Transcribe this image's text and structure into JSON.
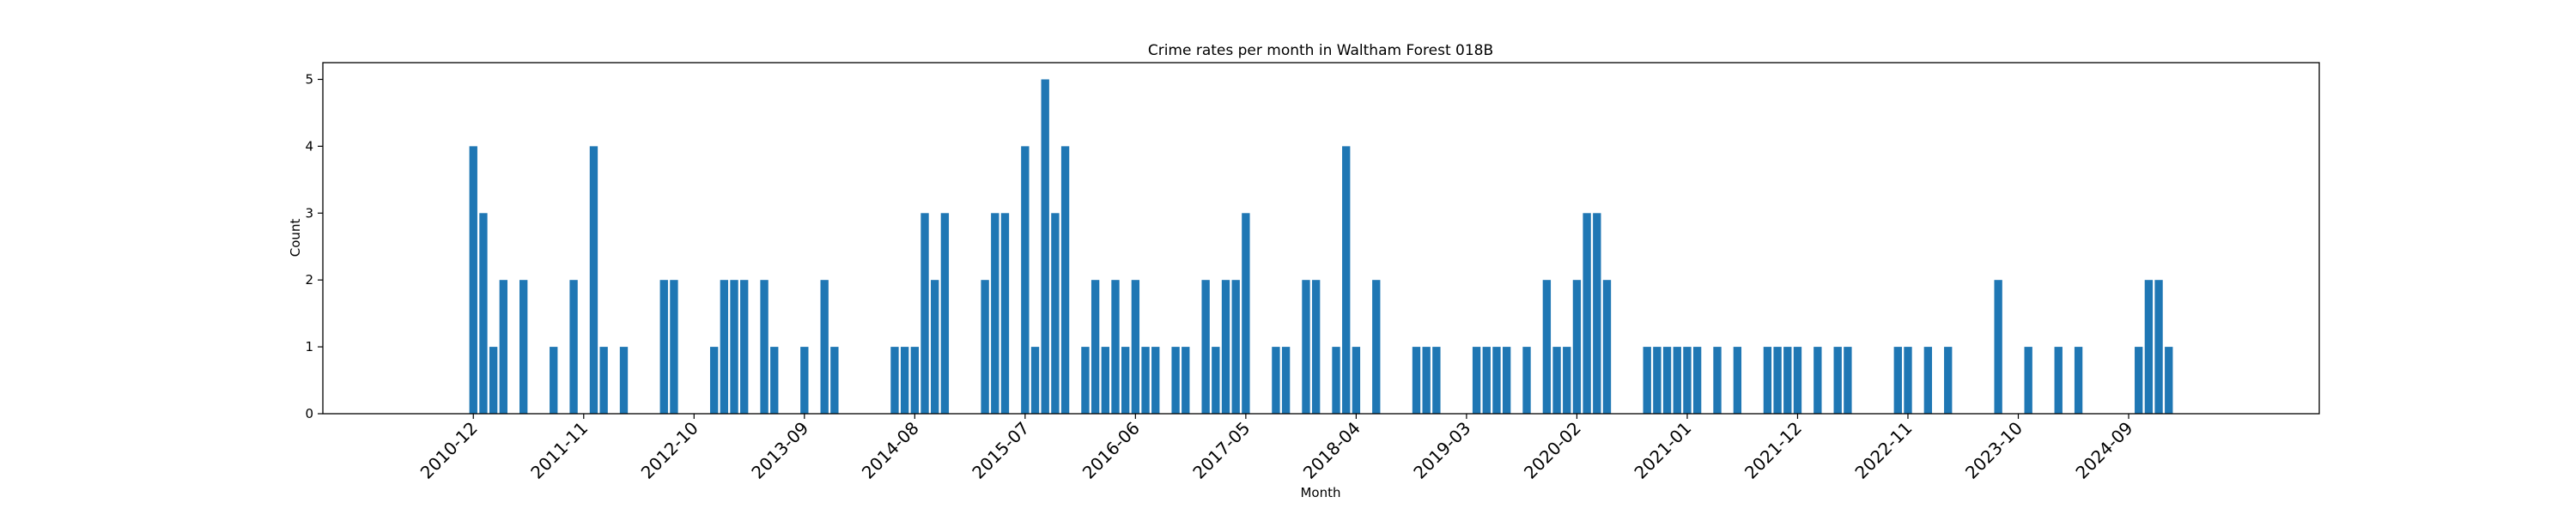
{
  "chart_data": {
    "type": "bar",
    "title": "Crime rates per month in Waltham Forest 018B",
    "xlabel": "Month",
    "ylabel": "Count",
    "ylim": [
      0,
      5.25
    ],
    "yticks": [
      0,
      1,
      2,
      3,
      4,
      5
    ],
    "xlim": [
      "2009-09",
      "2026-04"
    ],
    "xticks": [
      "2010-12",
      "2011-11",
      "2012-10",
      "2013-09",
      "2014-08",
      "2015-07",
      "2016-06",
      "2017-05",
      "2018-04",
      "2019-03",
      "2020-02",
      "2021-01",
      "2021-12",
      "2022-11",
      "2023-10",
      "2024-09"
    ],
    "bar_color": "#1f77b4",
    "grid": false,
    "legend": "none",
    "categories": [
      "2010-12",
      "2011-01",
      "2011-02",
      "2011-03",
      "2011-05",
      "2011-08",
      "2011-10",
      "2011-12",
      "2012-01",
      "2012-03",
      "2012-07",
      "2012-08",
      "2012-12",
      "2013-01",
      "2013-02",
      "2013-03",
      "2013-05",
      "2013-06",
      "2013-09",
      "2013-11",
      "2013-12",
      "2014-06",
      "2014-07",
      "2014-08",
      "2014-09",
      "2014-10",
      "2014-11",
      "2015-03",
      "2015-04",
      "2015-05",
      "2015-07",
      "2015-08",
      "2015-09",
      "2015-10",
      "2015-11",
      "2016-01",
      "2016-02",
      "2016-03",
      "2016-04",
      "2016-05",
      "2016-06",
      "2016-07",
      "2016-08",
      "2016-10",
      "2016-11",
      "2017-01",
      "2017-02",
      "2017-03",
      "2017-04",
      "2017-05",
      "2017-08",
      "2017-09",
      "2017-11",
      "2017-12",
      "2018-02",
      "2018-03",
      "2018-04",
      "2018-06",
      "2018-10",
      "2018-11",
      "2018-12",
      "2019-04",
      "2019-05",
      "2019-06",
      "2019-07",
      "2019-09",
      "2019-11",
      "2019-12",
      "2020-01",
      "2020-02",
      "2020-03",
      "2020-04",
      "2020-05",
      "2020-09",
      "2020-10",
      "2020-11",
      "2020-12",
      "2021-01",
      "2021-02",
      "2021-04",
      "2021-06",
      "2021-09",
      "2021-10",
      "2021-11",
      "2021-12",
      "2022-02",
      "2022-04",
      "2022-05",
      "2022-10",
      "2022-11",
      "2023-01",
      "2023-03",
      "2023-08",
      "2023-11",
      "2024-02",
      "2024-04",
      "2024-10",
      "2024-11",
      "2024-12",
      "2025-01"
    ],
    "values": [
      4,
      3,
      1,
      2,
      2,
      1,
      2,
      4,
      1,
      1,
      2,
      2,
      1,
      2,
      2,
      2,
      2,
      1,
      1,
      2,
      1,
      1,
      1,
      1,
      3,
      2,
      3,
      2,
      3,
      3,
      4,
      1,
      5,
      3,
      4,
      1,
      2,
      1,
      2,
      1,
      2,
      1,
      1,
      1,
      1,
      2,
      1,
      2,
      2,
      3,
      1,
      1,
      2,
      2,
      1,
      4,
      1,
      2,
      1,
      1,
      1,
      1,
      1,
      1,
      1,
      1,
      2,
      1,
      1,
      2,
      3,
      3,
      2,
      1,
      1,
      1,
      1,
      1,
      1,
      1,
      1,
      1,
      1,
      1,
      1,
      1,
      1,
      1,
      1,
      1,
      1,
      1,
      2,
      1,
      1,
      1,
      1,
      2,
      2,
      1
    ]
  }
}
